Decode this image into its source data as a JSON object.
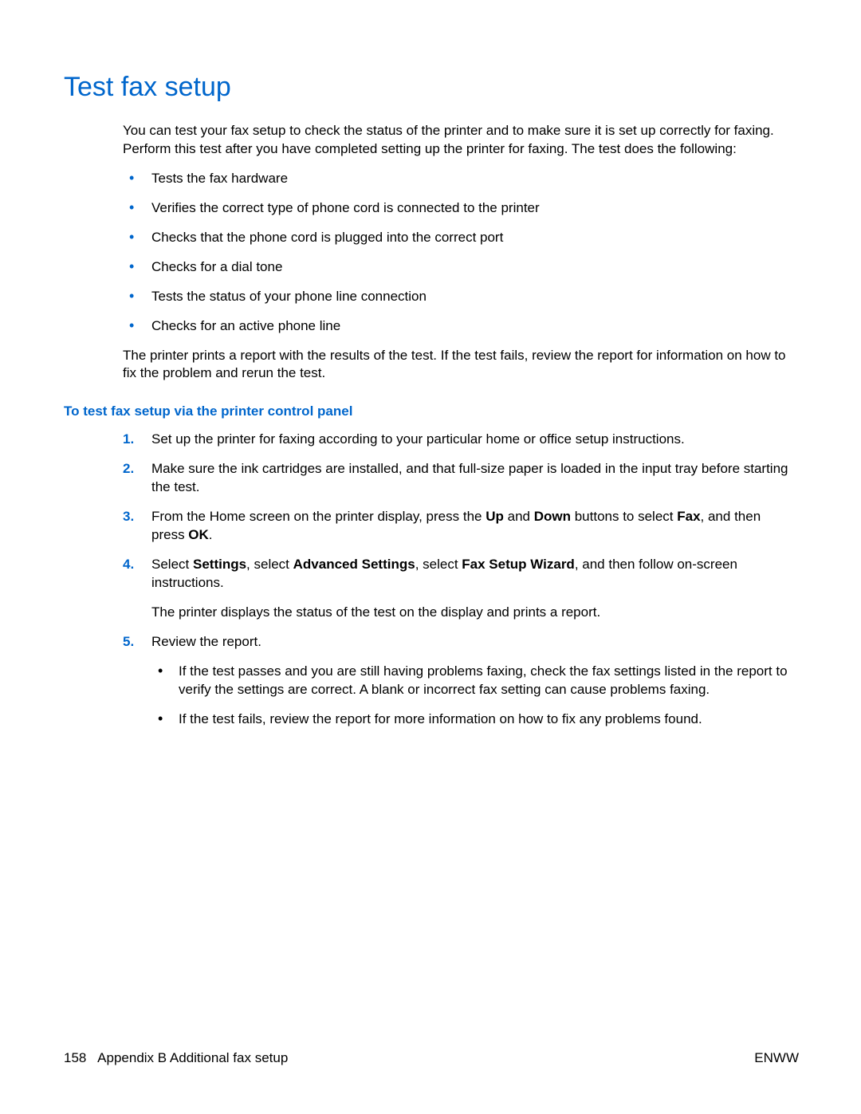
{
  "title": "Test fax setup",
  "intro": "You can test your fax setup to check the status of the printer and to make sure it is set up correctly for faxing. Perform this test after you have completed setting up the printer for faxing. The test does the following:",
  "bullets": [
    "Tests the fax hardware",
    "Verifies the correct type of phone cord is connected to the printer",
    "Checks that the phone cord is plugged into the correct port",
    "Checks for a dial tone",
    "Tests the status of your phone line connection",
    "Checks for an active phone line"
  ],
  "afterBullets": "The printer prints a report with the results of the test. If the test fails, review the report for information on how to fix the problem and rerun the test.",
  "subHeading": "To test fax setup via the printer control panel",
  "steps": {
    "s1": "Set up the printer for faxing according to your particular home or office setup instructions.",
    "s2": "Make sure the ink cartridges are installed, and that full-size paper is loaded in the input tray before starting the test.",
    "s3_a": "From the Home screen on the printer display, press the ",
    "s3_up": "Up",
    "s3_b": " and ",
    "s3_down": "Down",
    "s3_c": " buttons to select ",
    "s3_fax": "Fax",
    "s3_d": ", and then press ",
    "s3_ok": "OK",
    "s3_e": ".",
    "s4_a": "Select ",
    "s4_settings": "Settings",
    "s4_b": ", select ",
    "s4_adv": "Advanced Settings",
    "s4_c": ", select ",
    "s4_wiz": "Fax Setup Wizard",
    "s4_d": ", and then follow on-screen instructions.",
    "s4_after": "The printer displays the status of the test on the display and prints a report.",
    "s5": "Review the report.",
    "s5_sub1": "If the test passes and you are still having problems faxing, check the fax settings listed in the report to verify the settings are correct. A blank or incorrect fax setting can cause problems faxing.",
    "s5_sub2": "If the test fails, review the report for more information on how to fix any problems found."
  },
  "footer": {
    "pageNum": "158",
    "section": "Appendix B   Additional fax setup",
    "lang": "ENWW"
  },
  "colors": {
    "accent": "#0066cc",
    "text": "#000000",
    "background": "#ffffff"
  }
}
